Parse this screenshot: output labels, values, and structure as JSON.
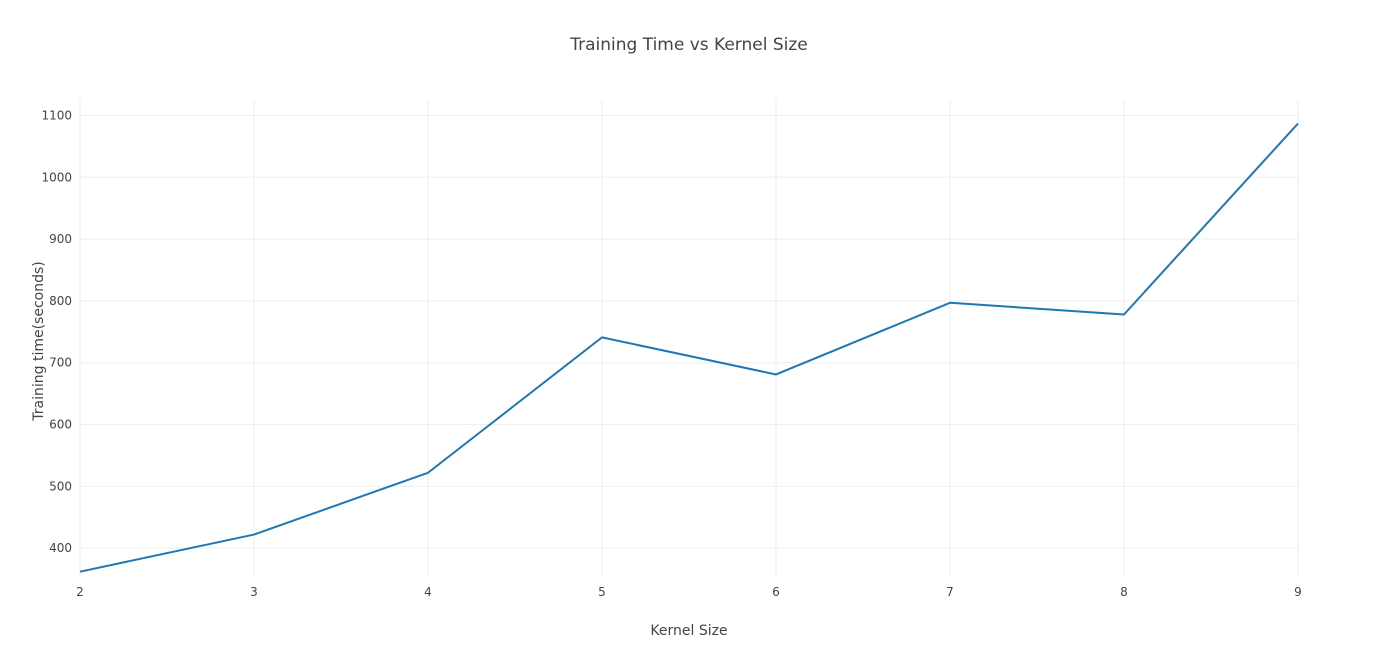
{
  "chart_data": {
    "type": "line",
    "title": "Training Time vs Kernel Size",
    "xlabel": "Kernel Size",
    "ylabel": "Training time(seconds)",
    "x": [
      2,
      3,
      4,
      5,
      6,
      7,
      8,
      9
    ],
    "series": [
      {
        "values": [
          362,
          422,
          522,
          741,
          681,
          797,
          778,
          1087
        ]
      }
    ],
    "xlim": [
      2,
      9
    ],
    "ylim": [
      355,
      1125
    ],
    "xticks": [
      2,
      3,
      4,
      5,
      6,
      7,
      8,
      9
    ],
    "yticks": [
      400,
      500,
      600,
      700,
      800,
      900,
      1000,
      1100
    ],
    "grid": true,
    "legend": false,
    "colors": {
      "line": "#1f77b4",
      "grid": "#eeeeee",
      "text": "#444444"
    }
  }
}
